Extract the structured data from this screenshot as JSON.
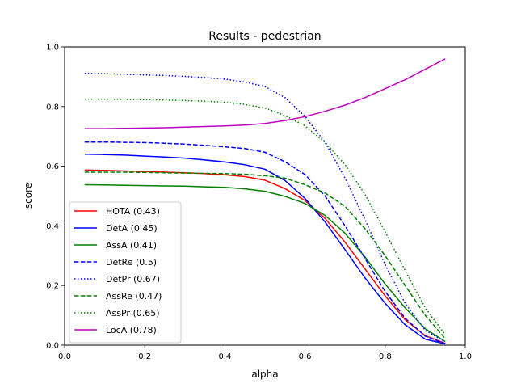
{
  "chart_data": {
    "type": "line",
    "title": "Results - pedestrian",
    "xlabel": "alpha",
    "ylabel": "score",
    "xlim": [
      0.0,
      1.0
    ],
    "ylim": [
      0.0,
      1.0
    ],
    "xticks": [
      "0.0",
      "0.2",
      "0.4",
      "0.6",
      "0.8",
      "1.0"
    ],
    "yticks": [
      "0.0",
      "0.2",
      "0.4",
      "0.6",
      "0.8",
      "1.0"
    ],
    "grid": false,
    "legend_position": "lower-left",
    "x": [
      0.05,
      0.1,
      0.15,
      0.2,
      0.25,
      0.3,
      0.35,
      0.4,
      0.45,
      0.5,
      0.55,
      0.6,
      0.65,
      0.7,
      0.75,
      0.8,
      0.85,
      0.9,
      0.95
    ],
    "series": [
      {
        "name": "HOTA (0.43)",
        "color": "#ff0000",
        "dash": "solid",
        "values": [
          0.587,
          0.586,
          0.584,
          0.582,
          0.58,
          0.578,
          0.575,
          0.571,
          0.565,
          0.553,
          0.525,
          0.485,
          0.425,
          0.345,
          0.255,
          0.165,
          0.085,
          0.032,
          0.006
        ]
      },
      {
        "name": "DetA (0.45)",
        "color": "#0000ff",
        "dash": "solid",
        "values": [
          0.64,
          0.639,
          0.637,
          0.634,
          0.631,
          0.627,
          0.621,
          0.614,
          0.605,
          0.59,
          0.552,
          0.492,
          0.413,
          0.32,
          0.225,
          0.14,
          0.068,
          0.02,
          0.004
        ]
      },
      {
        "name": "AssA (0.41)",
        "color": "#008000",
        "dash": "solid",
        "values": [
          0.538,
          0.537,
          0.536,
          0.535,
          0.534,
          0.533,
          0.531,
          0.529,
          0.524,
          0.516,
          0.499,
          0.475,
          0.435,
          0.375,
          0.295,
          0.205,
          0.125,
          0.055,
          0.012
        ]
      },
      {
        "name": "DetRe (0.5)",
        "color": "#0000ff",
        "dash": "dashed",
        "values": [
          0.681,
          0.681,
          0.68,
          0.679,
          0.677,
          0.674,
          0.67,
          0.665,
          0.659,
          0.647,
          0.615,
          0.572,
          0.5,
          0.4,
          0.29,
          0.18,
          0.09,
          0.03,
          0.005
        ]
      },
      {
        "name": "DetPr (0.67)",
        "color": "#0000ff",
        "dash": "dotted",
        "values": [
          0.911,
          0.91,
          0.908,
          0.906,
          0.904,
          0.901,
          0.897,
          0.892,
          0.882,
          0.867,
          0.83,
          0.767,
          0.68,
          0.56,
          0.42,
          0.27,
          0.14,
          0.05,
          0.01
        ]
      },
      {
        "name": "AssRe (0.47)",
        "color": "#008000",
        "dash": "dashed",
        "values": [
          0.58,
          0.58,
          0.58,
          0.579,
          0.578,
          0.577,
          0.576,
          0.575,
          0.573,
          0.568,
          0.56,
          0.538,
          0.51,
          0.465,
          0.39,
          0.3,
          0.2,
          0.1,
          0.022
        ]
      },
      {
        "name": "AssPr (0.65)",
        "color": "#008000",
        "dash": "dotted",
        "values": [
          0.825,
          0.825,
          0.824,
          0.823,
          0.822,
          0.82,
          0.818,
          0.814,
          0.807,
          0.795,
          0.77,
          0.735,
          0.68,
          0.605,
          0.505,
          0.38,
          0.25,
          0.125,
          0.035
        ]
      },
      {
        "name": "LocA (0.78)",
        "color": "#bf00bf",
        "dash": "solid",
        "values": [
          0.726,
          0.726,
          0.727,
          0.728,
          0.729,
          0.731,
          0.733,
          0.735,
          0.738,
          0.743,
          0.753,
          0.766,
          0.784,
          0.805,
          0.83,
          0.86,
          0.89,
          0.925,
          0.96
        ]
      }
    ]
  }
}
